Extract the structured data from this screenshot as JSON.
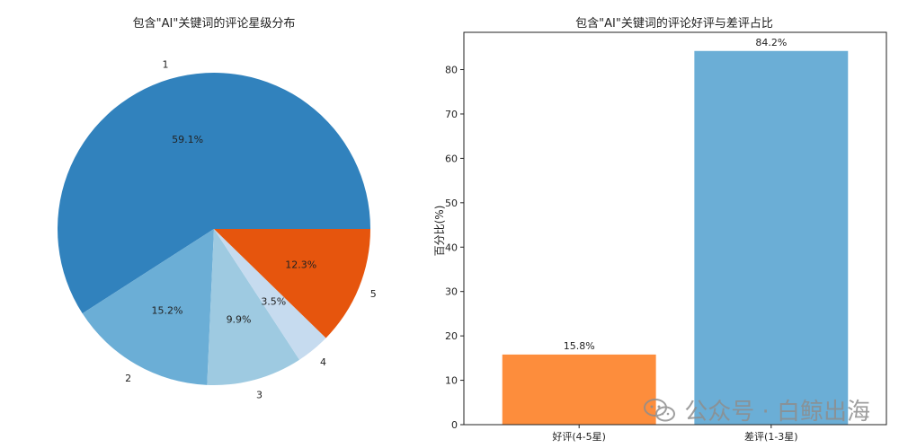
{
  "chart_data": [
    {
      "type": "pie",
      "title": "包含\"AI\"关键词的评论星级分布",
      "categories": [
        "1",
        "2",
        "3",
        "4",
        "5"
      ],
      "values": [
        59.1,
        15.2,
        9.9,
        3.5,
        12.3
      ],
      "percent_labels": [
        "59.1%",
        "15.2%",
        "9.9%",
        "3.5%",
        "12.3%"
      ],
      "colors": [
        "#3182bd",
        "#6baed6",
        "#9ecae1",
        "#c6dbef",
        "#e6550d"
      ]
    },
    {
      "type": "bar",
      "title": "包含\"AI\"关键词的评论好评与差评占比",
      "categories": [
        "好评(4-5星)",
        "差评(1-3星)"
      ],
      "values": [
        15.8,
        84.2
      ],
      "value_labels": [
        "15.8%",
        "84.2%"
      ],
      "colors": [
        "#fd8d3c",
        "#6baed6"
      ],
      "ylabel": "百分比(%)",
      "ylim": [
        0,
        88.4
      ],
      "yticks": [
        0,
        10,
        20,
        30,
        40,
        50,
        60,
        70,
        80
      ],
      "grid": false
    }
  ],
  "watermark": {
    "text": "公众号 · 白鲸出海",
    "icon": "wechat-icon"
  }
}
